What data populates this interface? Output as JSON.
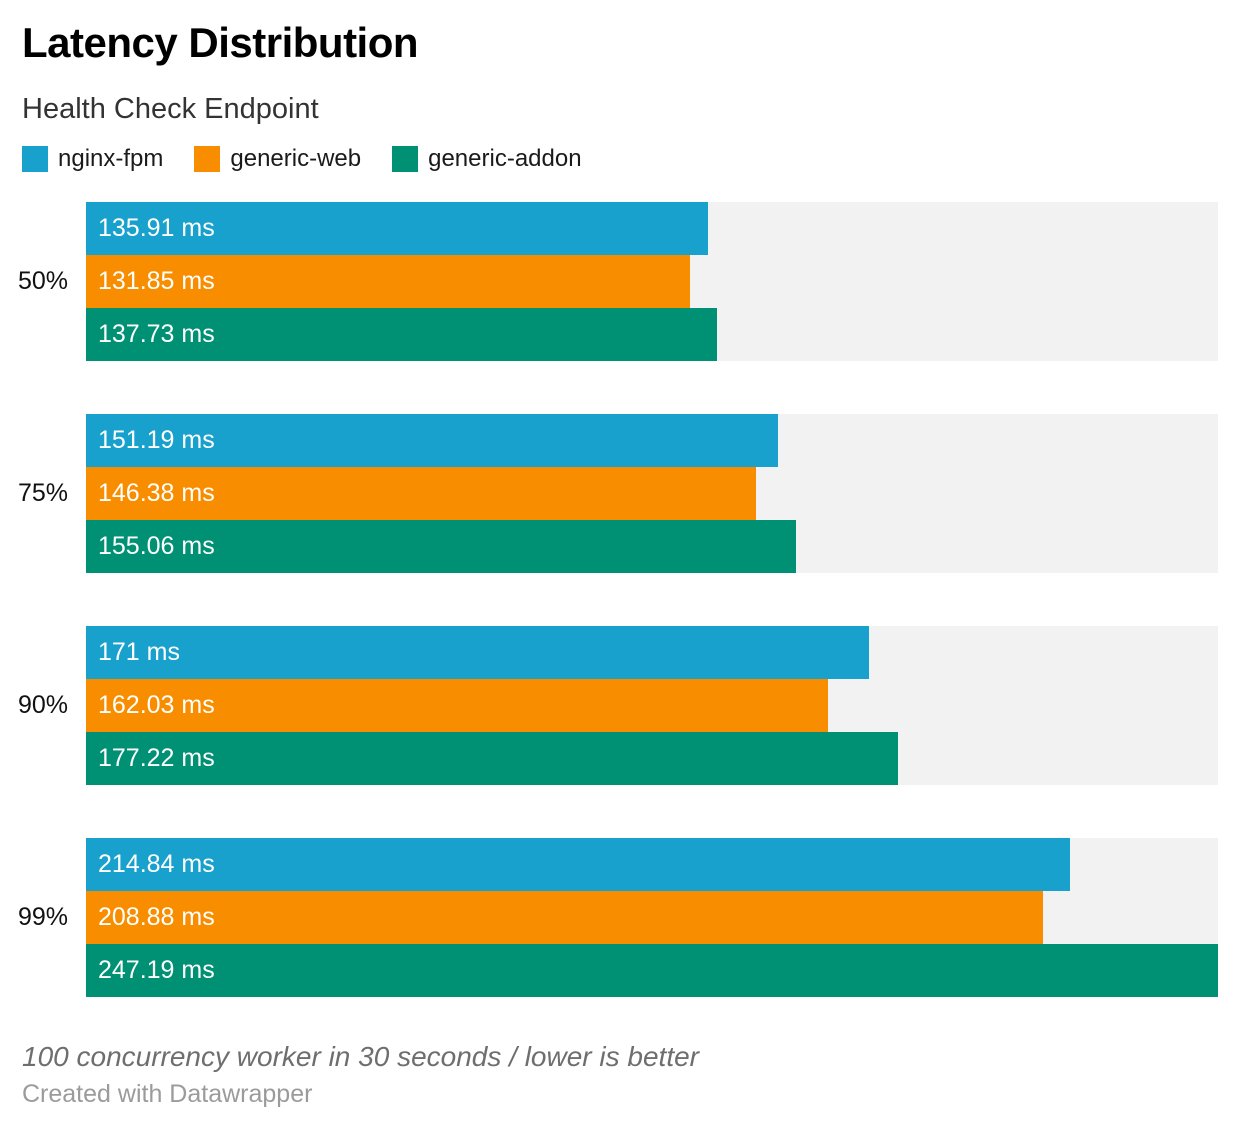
{
  "header": {
    "title": "Latency Distribution",
    "subtitle": "Health Check Endpoint"
  },
  "chart_data": {
    "type": "bar",
    "orientation": "horizontal",
    "unit": "ms",
    "title": "Latency Distribution",
    "subtitle": "Health Check Endpoint",
    "legend_position": "top",
    "grid": false,
    "xlim": [
      0,
      247.19
    ],
    "track_color": "#f2f2f2",
    "categories": [
      "50%",
      "75%",
      "90%",
      "99%"
    ],
    "series": [
      {
        "name": "nginx-fpm",
        "color": "#18a1cd",
        "values": [
          135.91,
          151.19,
          171,
          214.84
        ],
        "labels": [
          "135.91 ms",
          "151.19 ms",
          "171 ms",
          "214.84 ms"
        ]
      },
      {
        "name": "generic-web",
        "color": "#f98d00",
        "values": [
          131.85,
          146.38,
          162.03,
          208.88
        ],
        "labels": [
          "131.85 ms",
          "146.38 ms",
          "162.03 ms",
          "208.88 ms"
        ]
      },
      {
        "name": "generic-addon",
        "color": "#009175",
        "values": [
          137.73,
          155.06,
          177.22,
          247.19
        ],
        "labels": [
          "137.73 ms",
          "155.06 ms",
          "177.22 ms",
          "247.19 ms"
        ]
      }
    ]
  },
  "footer": {
    "note": "100 concurrency worker in 30 seconds / lower is better",
    "credit": "Created with Datawrapper"
  }
}
